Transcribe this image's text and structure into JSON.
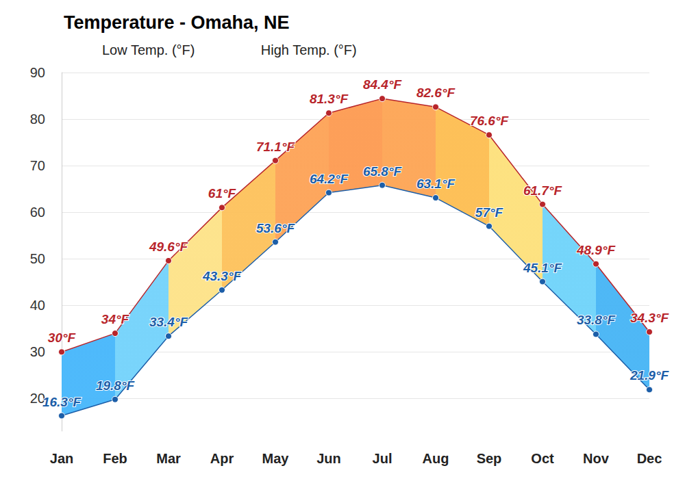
{
  "chart_data": {
    "type": "line",
    "title": "Temperature - Omaha, NE",
    "categories": [
      "Jan",
      "Feb",
      "Mar",
      "Apr",
      "May",
      "Jun",
      "Jul",
      "Aug",
      "Sep",
      "Oct",
      "Nov",
      "Dec"
    ],
    "series": [
      {
        "name": "Low Temp. (°F)",
        "color": "#1c5ea8",
        "values": [
          16.3,
          19.8,
          33.4,
          43.3,
          53.6,
          64.2,
          65.8,
          63.1,
          57,
          45.1,
          33.8,
          21.9
        ],
        "value_labels": [
          "16.3°F",
          "19.8°F",
          "33.4°F",
          "43.3°F",
          "53.6°F",
          "64.2°F",
          "65.8°F",
          "63.1°F",
          "57°F",
          "45.1°F",
          "33.8°F",
          "21.9°F"
        ]
      },
      {
        "name": "High Temp. (°F)",
        "color": "#b8252b",
        "values": [
          30,
          34,
          49.6,
          61,
          71.1,
          81.3,
          84.4,
          82.6,
          76.6,
          61.7,
          48.9,
          34.3
        ],
        "value_labels": [
          "30°F",
          "34°F",
          "49.6°F",
          "61°F",
          "71.1°F",
          "81.3°F",
          "84.4°F",
          "82.6°F",
          "76.6°F",
          "61.7°F",
          "48.9°F",
          "34.3°F"
        ]
      }
    ],
    "ylim": [
      13,
      90
    ],
    "yticks": [
      20,
      30,
      40,
      50,
      60,
      70,
      80,
      90
    ],
    "grid": true,
    "data_labels": true,
    "legend": "top-left",
    "marker": "circle"
  }
}
